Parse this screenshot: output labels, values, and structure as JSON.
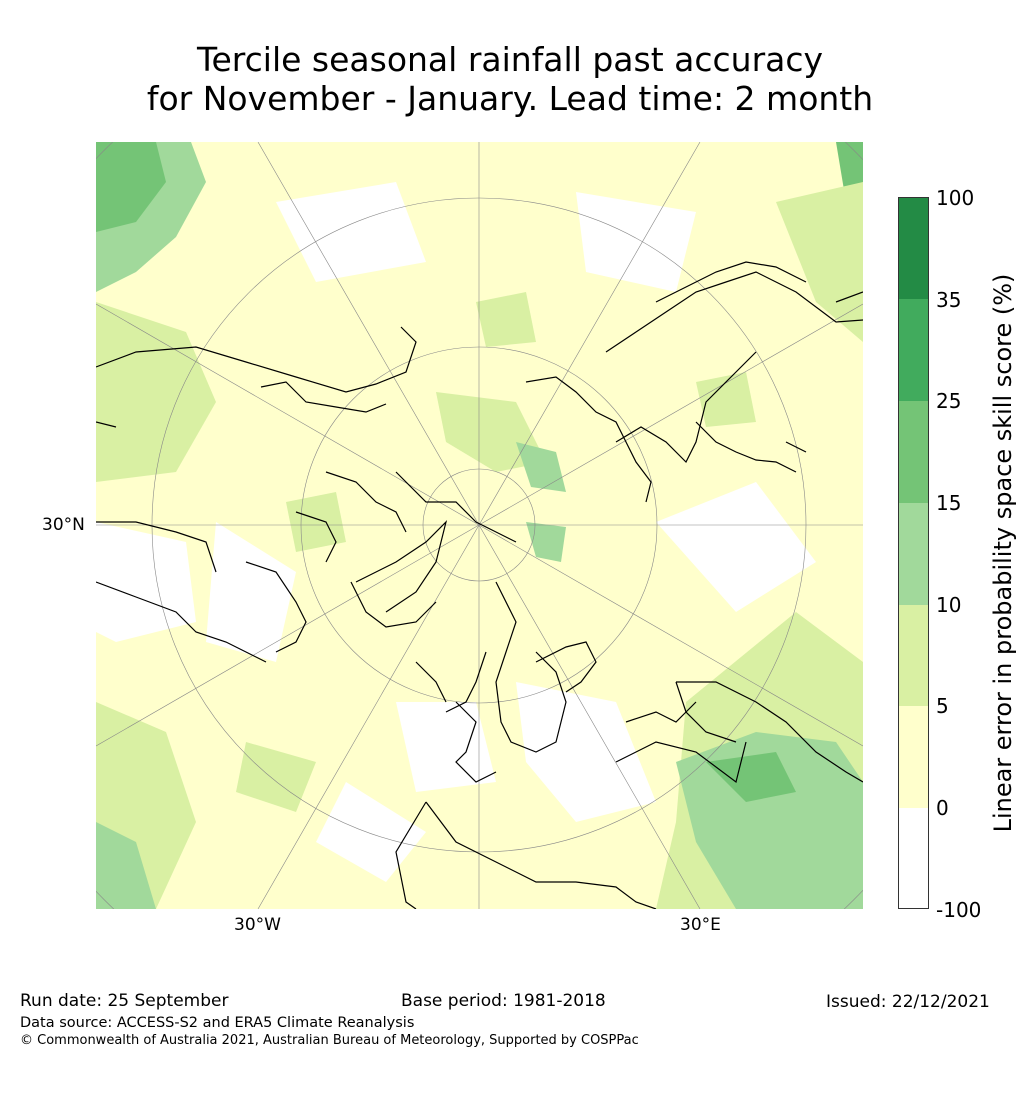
{
  "title": {
    "line1": "Tercile seasonal rainfall past accuracy",
    "line2": "for November - January. Lead time: 2 month"
  },
  "map": {
    "lat_label": "30°N",
    "lon_label_west": "30°W",
    "lon_label_east": "30°E"
  },
  "colorbar": {
    "label": "Linear error in probability space skill score (%)",
    "ticks": [
      "100",
      "35",
      "25",
      "15",
      "10",
      "5",
      "0",
      "-100"
    ],
    "colors": [
      "#238b45",
      "#41ab5d",
      "#74c476",
      "#a1d99b",
      "#d9f0a3",
      "#ffffcc",
      "#ffffff"
    ]
  },
  "footer": {
    "run_date": "Run date: 25 September",
    "base_period": "Base period: 1981-2018",
    "issued": "Issued: 22/12/2021",
    "data_source": "Data source: ACCESS-S2 and ERA5 Climate Reanalysis",
    "copyright": "© Commonwealth of Australia 2021, Australian Bureau of Meteorology, Supported by COSPPac"
  }
}
